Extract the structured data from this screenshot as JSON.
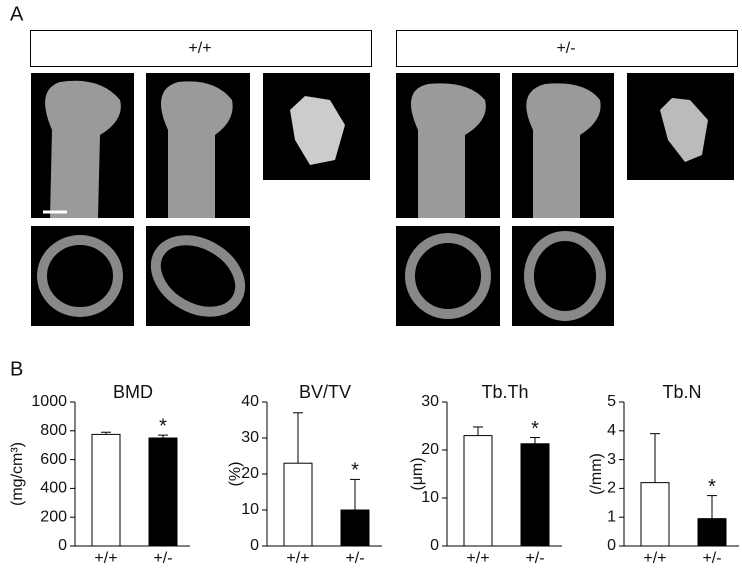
{
  "panel_a": {
    "label": "A",
    "groups": [
      "+/+",
      "+/-"
    ]
  },
  "panel_b": {
    "label": "B"
  },
  "chart_data": [
    {
      "type": "bar",
      "title": "BMD",
      "ylabel": "(mg/cm³)",
      "categories": [
        "+/+",
        "+/-"
      ],
      "values": [
        775,
        750
      ],
      "errors": [
        15,
        20
      ],
      "colors": [
        "#ffffff",
        "#000000"
      ],
      "annotations": [
        null,
        "*"
      ],
      "ylim": [
        0,
        1000
      ],
      "yticks": [
        0,
        200,
        400,
        600,
        800,
        1000
      ]
    },
    {
      "type": "bar",
      "title": "BV/TV",
      "ylabel": "(%)",
      "categories": [
        "+/+",
        "+/-"
      ],
      "values": [
        23,
        10
      ],
      "errors": [
        14,
        8.5
      ],
      "colors": [
        "#ffffff",
        "#000000"
      ],
      "annotations": [
        null,
        "*"
      ],
      "ylim": [
        0,
        40
      ],
      "yticks": [
        0,
        10,
        20,
        30,
        40
      ]
    },
    {
      "type": "bar",
      "title": "Tb.Th",
      "ylabel": "(μm)",
      "categories": [
        "+/+",
        "+/-"
      ],
      "values": [
        23,
        21.3
      ],
      "errors": [
        1.8,
        1.3
      ],
      "colors": [
        "#ffffff",
        "#000000"
      ],
      "annotations": [
        null,
        "*"
      ],
      "ylim": [
        0,
        30
      ],
      "yticks": [
        0,
        10,
        20,
        30
      ]
    },
    {
      "type": "bar",
      "title": "Tb.N",
      "ylabel": "(/mm)",
      "categories": [
        "+/+",
        "+/-"
      ],
      "values": [
        2.2,
        0.95
      ],
      "errors": [
        1.7,
        0.8
      ],
      "colors": [
        "#ffffff",
        "#000000"
      ],
      "annotations": [
        null,
        "*"
      ],
      "ylim": [
        0,
        5
      ],
      "yticks": [
        0,
        1,
        2,
        3,
        4,
        5
      ]
    }
  ]
}
